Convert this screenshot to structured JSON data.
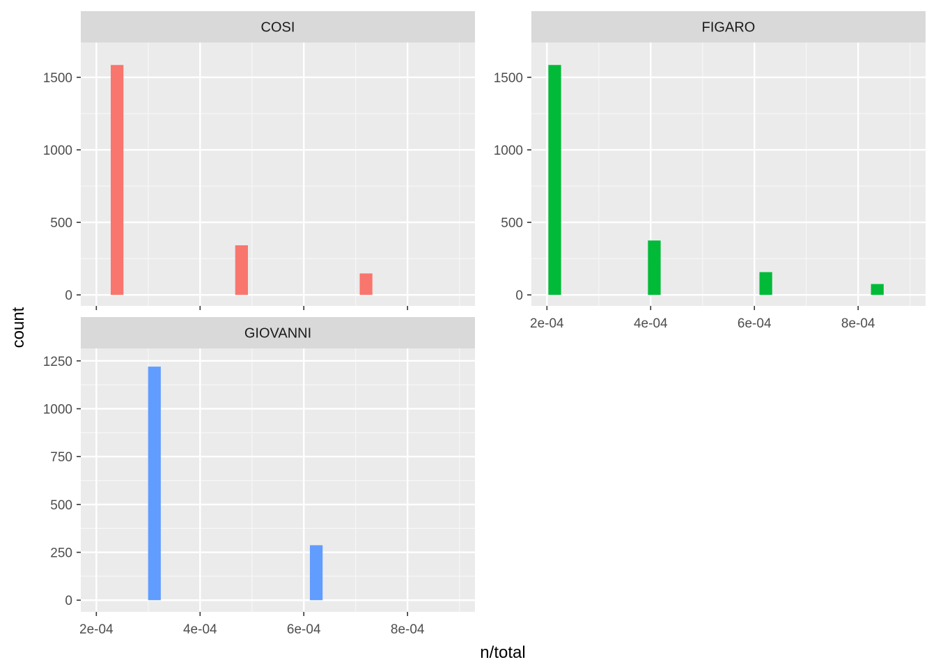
{
  "chart_data": {
    "type": "bar",
    "title": "",
    "xlabel": "n/total",
    "ylabel": "count",
    "xlim": [
      0.00017,
      0.00093
    ],
    "x_ticks": [
      0.0002,
      0.0004,
      0.0006,
      0.0008
    ],
    "x_tick_labels": [
      "2e-04",
      "4e-04",
      "6e-04",
      "8e-04"
    ],
    "bin_width": 2.45e-05,
    "grid": true,
    "legend": "none",
    "panels": [
      {
        "name": "COSI",
        "color": "#F8766D",
        "ylim": [
          -76,
          1740
        ],
        "y_ticks": [
          0,
          500,
          1000,
          1500
        ],
        "y_tick_labels": [
          "0",
          "500",
          "1000",
          "1500"
        ],
        "bars": [
          {
            "x": 0.00024,
            "count": 1585
          },
          {
            "x": 0.00048,
            "count": 342
          },
          {
            "x": 0.00072,
            "count": 148
          }
        ]
      },
      {
        "name": "FIGARO",
        "color": "#00BA38",
        "ylim": [
          -76,
          1740
        ],
        "y_ticks": [
          0,
          500,
          1000,
          1500
        ],
        "y_tick_labels": [
          "0",
          "500",
          "1000",
          "1500"
        ],
        "bars": [
          {
            "x": 0.000215,
            "count": 1585
          },
          {
            "x": 0.000407,
            "count": 375
          },
          {
            "x": 0.000622,
            "count": 157
          },
          {
            "x": 0.000837,
            "count": 75
          }
        ]
      },
      {
        "name": "GIOVANNI",
        "color": "#619CFF",
        "ylim": [
          -61,
          1315
        ],
        "y_ticks": [
          0,
          250,
          500,
          750,
          1000,
          1250
        ],
        "y_tick_labels": [
          "0",
          "250",
          "500",
          "750",
          "1000",
          "1250"
        ],
        "bars": [
          {
            "x": 0.000312,
            "count": 1220
          },
          {
            "x": 0.000624,
            "count": 287
          }
        ]
      }
    ]
  }
}
